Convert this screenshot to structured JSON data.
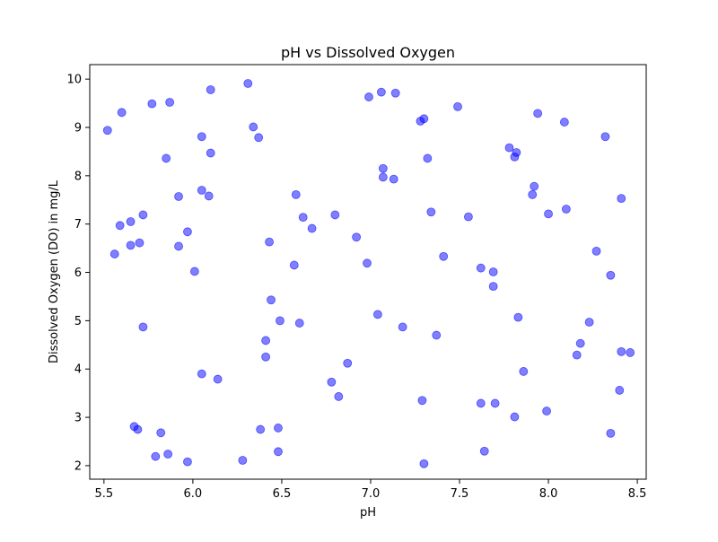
{
  "chart_data": {
    "type": "scatter",
    "title": "pH vs Dissolved Oxygen",
    "xlabel": "pH",
    "ylabel": "Dissolved Oxygen (DO) in mg/L",
    "xlim": [
      5.42,
      8.55
    ],
    "ylim": [
      1.72,
      10.3
    ],
    "xticks": [
      "5.5",
      "6.0",
      "6.5",
      "7.0",
      "7.5",
      "8.0",
      "8.5"
    ],
    "yticks": [
      "2",
      "3",
      "4",
      "5",
      "6",
      "7",
      "8",
      "9",
      "10"
    ],
    "grid": false,
    "marker_color": "#0000ff",
    "marker_alpha": 0.5,
    "series": [
      {
        "points": [
          [
            5.52,
            8.94
          ],
          [
            5.6,
            9.31
          ],
          [
            5.77,
            9.49
          ],
          [
            5.87,
            9.52
          ],
          [
            6.1,
            9.78
          ],
          [
            6.31,
            9.91
          ],
          [
            6.05,
            8.81
          ],
          [
            6.1,
            8.47
          ],
          [
            5.85,
            8.36
          ],
          [
            6.34,
            9.01
          ],
          [
            6.37,
            8.79
          ],
          [
            5.92,
            7.57
          ],
          [
            6.05,
            7.7
          ],
          [
            6.09,
            7.58
          ],
          [
            5.59,
            6.97
          ],
          [
            5.65,
            7.05
          ],
          [
            5.72,
            7.19
          ],
          [
            5.56,
            6.38
          ],
          [
            5.65,
            6.56
          ],
          [
            5.7,
            6.61
          ],
          [
            5.92,
            6.54
          ],
          [
            5.97,
            6.84
          ],
          [
            6.01,
            6.02
          ],
          [
            5.72,
            4.87
          ],
          [
            5.67,
            2.81
          ],
          [
            5.69,
            2.75
          ],
          [
            5.82,
            2.68
          ],
          [
            5.79,
            2.19
          ],
          [
            5.86,
            2.24
          ],
          [
            5.97,
            2.08
          ],
          [
            6.05,
            3.9
          ],
          [
            6.14,
            3.79
          ],
          [
            6.28,
            2.11
          ],
          [
            6.38,
            2.75
          ],
          [
            6.48,
            2.78
          ],
          [
            6.48,
            2.29
          ],
          [
            6.41,
            4.59
          ],
          [
            6.41,
            4.25
          ],
          [
            6.43,
            6.63
          ],
          [
            6.44,
            5.43
          ],
          [
            6.49,
            5.0
          ],
          [
            6.6,
            4.95
          ],
          [
            6.57,
            6.15
          ],
          [
            6.58,
            7.61
          ],
          [
            6.62,
            7.14
          ],
          [
            6.67,
            6.91
          ],
          [
            6.8,
            7.19
          ],
          [
            6.78,
            3.73
          ],
          [
            6.82,
            3.43
          ],
          [
            6.87,
            4.12
          ],
          [
            6.92,
            6.73
          ],
          [
            6.98,
            6.19
          ],
          [
            6.99,
            9.63
          ],
          [
            7.06,
            9.73
          ],
          [
            7.14,
            9.71
          ],
          [
            7.07,
            8.15
          ],
          [
            7.07,
            7.97
          ],
          [
            7.13,
            7.93
          ],
          [
            7.04,
            5.13
          ],
          [
            7.18,
            4.87
          ],
          [
            7.28,
            9.13
          ],
          [
            7.3,
            9.18
          ],
          [
            7.32,
            8.36
          ],
          [
            7.34,
            7.25
          ],
          [
            7.49,
            9.43
          ],
          [
            7.41,
            6.33
          ],
          [
            7.37,
            4.7
          ],
          [
            7.29,
            3.35
          ],
          [
            7.3,
            2.04
          ],
          [
            7.55,
            7.15
          ],
          [
            7.62,
            6.09
          ],
          [
            7.69,
            6.01
          ],
          [
            7.69,
            5.71
          ],
          [
            7.62,
            3.29
          ],
          [
            7.7,
            3.29
          ],
          [
            7.64,
            2.3
          ],
          [
            7.78,
            8.58
          ],
          [
            7.81,
            8.39
          ],
          [
            7.82,
            8.48
          ],
          [
            7.94,
            9.29
          ],
          [
            7.91,
            7.61
          ],
          [
            7.92,
            7.78
          ],
          [
            8.0,
            7.21
          ],
          [
            7.83,
            5.07
          ],
          [
            7.86,
            3.95
          ],
          [
            7.81,
            3.01
          ],
          [
            7.99,
            3.13
          ],
          [
            8.09,
            9.11
          ],
          [
            8.1,
            7.31
          ],
          [
            8.32,
            8.81
          ],
          [
            8.41,
            7.53
          ],
          [
            8.27,
            6.44
          ],
          [
            8.35,
            5.94
          ],
          [
            8.23,
            4.97
          ],
          [
            8.18,
            4.53
          ],
          [
            8.16,
            4.29
          ],
          [
            8.41,
            4.36
          ],
          [
            8.46,
            4.34
          ],
          [
            8.4,
            3.56
          ],
          [
            8.35,
            2.67
          ]
        ]
      }
    ]
  }
}
